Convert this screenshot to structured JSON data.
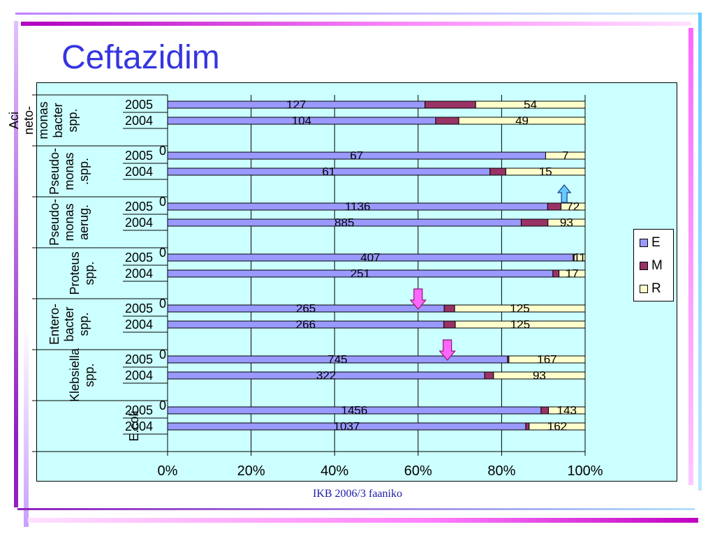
{
  "slide": {
    "title": "Ceftazidim",
    "footer": "IKB 2006/3 faaniko"
  },
  "colors": {
    "E": "#9999ff",
    "M": "#993366",
    "R": "#ffffcc",
    "panel": "#ccffff",
    "title": "#3535e0",
    "arrow_up": "#66ccff",
    "arrow_down": "#ff66ff"
  },
  "chart_data": {
    "type": "bar",
    "orientation": "horizontal",
    "stacking": "percent",
    "legend": {
      "position": "right",
      "entries": [
        "E",
        "M",
        "R"
      ]
    },
    "xaxis": {
      "range": [
        0,
        100
      ],
      "ticks": [
        "0%",
        "20%",
        "40%",
        "60%",
        "80%",
        "100%"
      ]
    },
    "groups": [
      {
        "label_lines": [
          "Aci",
          "neto-",
          "monas",
          "bacter",
          "spp."
        ],
        "gap_label": "",
        "rows": [
          {
            "year": "2005",
            "E": 127,
            "M": 25,
            "R": 54
          },
          {
            "year": "2004",
            "E": 104,
            "M": 9,
            "R": 49
          }
        ]
      },
      {
        "label_lines": [
          "Pseudo-",
          "monas",
          ".spp."
        ],
        "gap_label": "0",
        "rows": [
          {
            "year": "2005",
            "E": 67,
            "M": 0,
            "R": 7
          },
          {
            "year": "2004",
            "E": 61,
            "M": 3,
            "R": 15
          }
        ]
      },
      {
        "label_lines": [
          "Pseudo-",
          "monas",
          "aerug."
        ],
        "gap_label": "0",
        "rows": [
          {
            "year": "2005",
            "E": 1136,
            "M": 40,
            "R": 72
          },
          {
            "year": "2004",
            "E": 885,
            "M": 67,
            "R": 93
          }
        ]
      },
      {
        "label_lines": [
          "Proteus",
          "spp."
        ],
        "gap_label": "0",
        "rows": [
          {
            "year": "2005",
            "E": 407,
            "M": 1,
            "R": 11
          },
          {
            "year": "2004",
            "E": 251,
            "M": 4,
            "R": 17
          }
        ]
      },
      {
        "label_lines": [
          "Entero-",
          "bacter",
          "spp."
        ],
        "gap_label": "0",
        "rows": [
          {
            "year": "2005",
            "E": 265,
            "M": 10,
            "R": 125
          },
          {
            "year": "2004",
            "E": 266,
            "M": 11,
            "R": 125
          }
        ]
      },
      {
        "label_lines": [
          "Klebsiella",
          "spp."
        ],
        "gap_label": "0",
        "rows": [
          {
            "year": "2005",
            "E": 745,
            "M": 3,
            "R": 167
          },
          {
            "year": "2004",
            "E": 322,
            "M": 9,
            "R": 93
          }
        ]
      },
      {
        "label_lines": [
          "E.coli"
        ],
        "gap_label": "0",
        "rows": [
          {
            "year": "2005",
            "E": 1456,
            "M": 29,
            "R": 143
          },
          {
            "year": "2004",
            "E": 1037,
            "M": 10,
            "R": 162
          }
        ]
      }
    ],
    "annotations": [
      {
        "type": "arrow-up",
        "group_index": 2,
        "x_percent": 95
      },
      {
        "type": "arrow-down",
        "group_index": 4,
        "x_percent": 60
      },
      {
        "type": "arrow-down",
        "group_index": 5,
        "x_percent": 67
      }
    ]
  }
}
